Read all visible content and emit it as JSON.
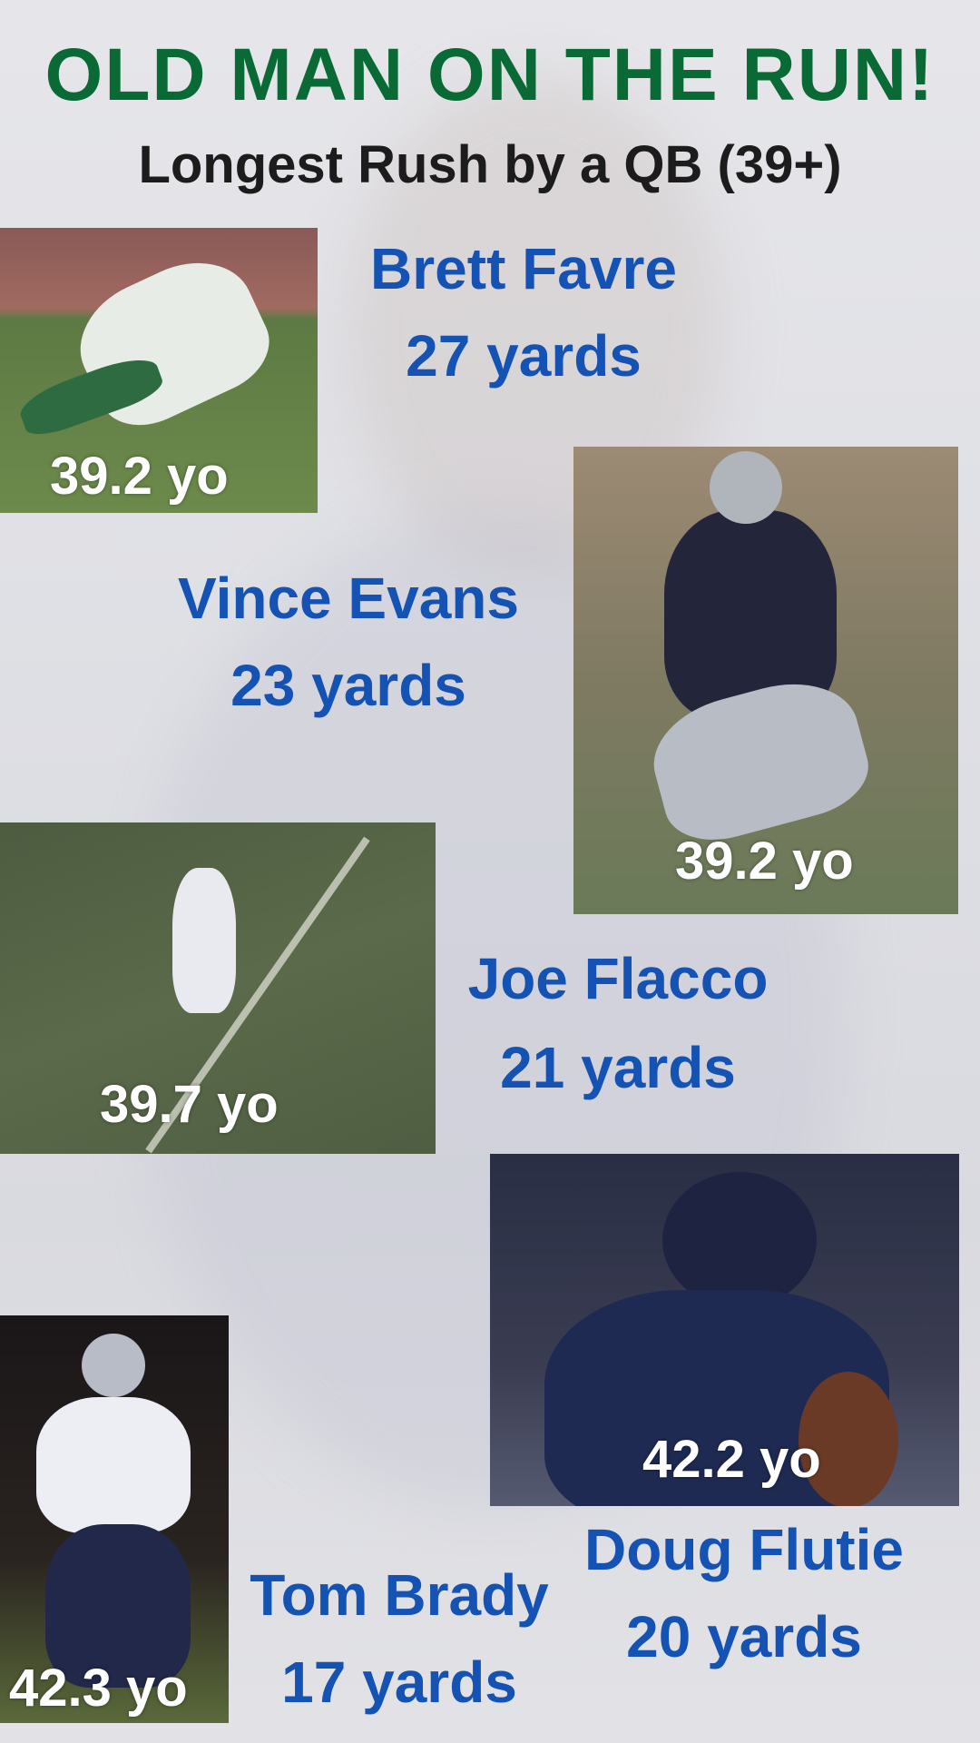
{
  "title": "OLD MAN ON THE RUN!",
  "subtitle": "Longest Rush by a QB (39+)",
  "colors": {
    "title": "#0a6a35",
    "player_text": "#1452b4",
    "age_text": "#ffffff"
  },
  "players": [
    {
      "name": "Brett Favre",
      "yards": "27 yards",
      "age": "39.2 yo"
    },
    {
      "name": "Vince Evans",
      "yards": "23 yards",
      "age": "39.2 yo"
    },
    {
      "name": "Joe Flacco",
      "yards": "21 yards",
      "age": "39.7 yo"
    },
    {
      "name": "Doug Flutie",
      "yards": "20 yards",
      "age": "42.2 yo"
    },
    {
      "name": "Tom Brady",
      "yards": "17 yards",
      "age": "42.3 yo"
    }
  ]
}
